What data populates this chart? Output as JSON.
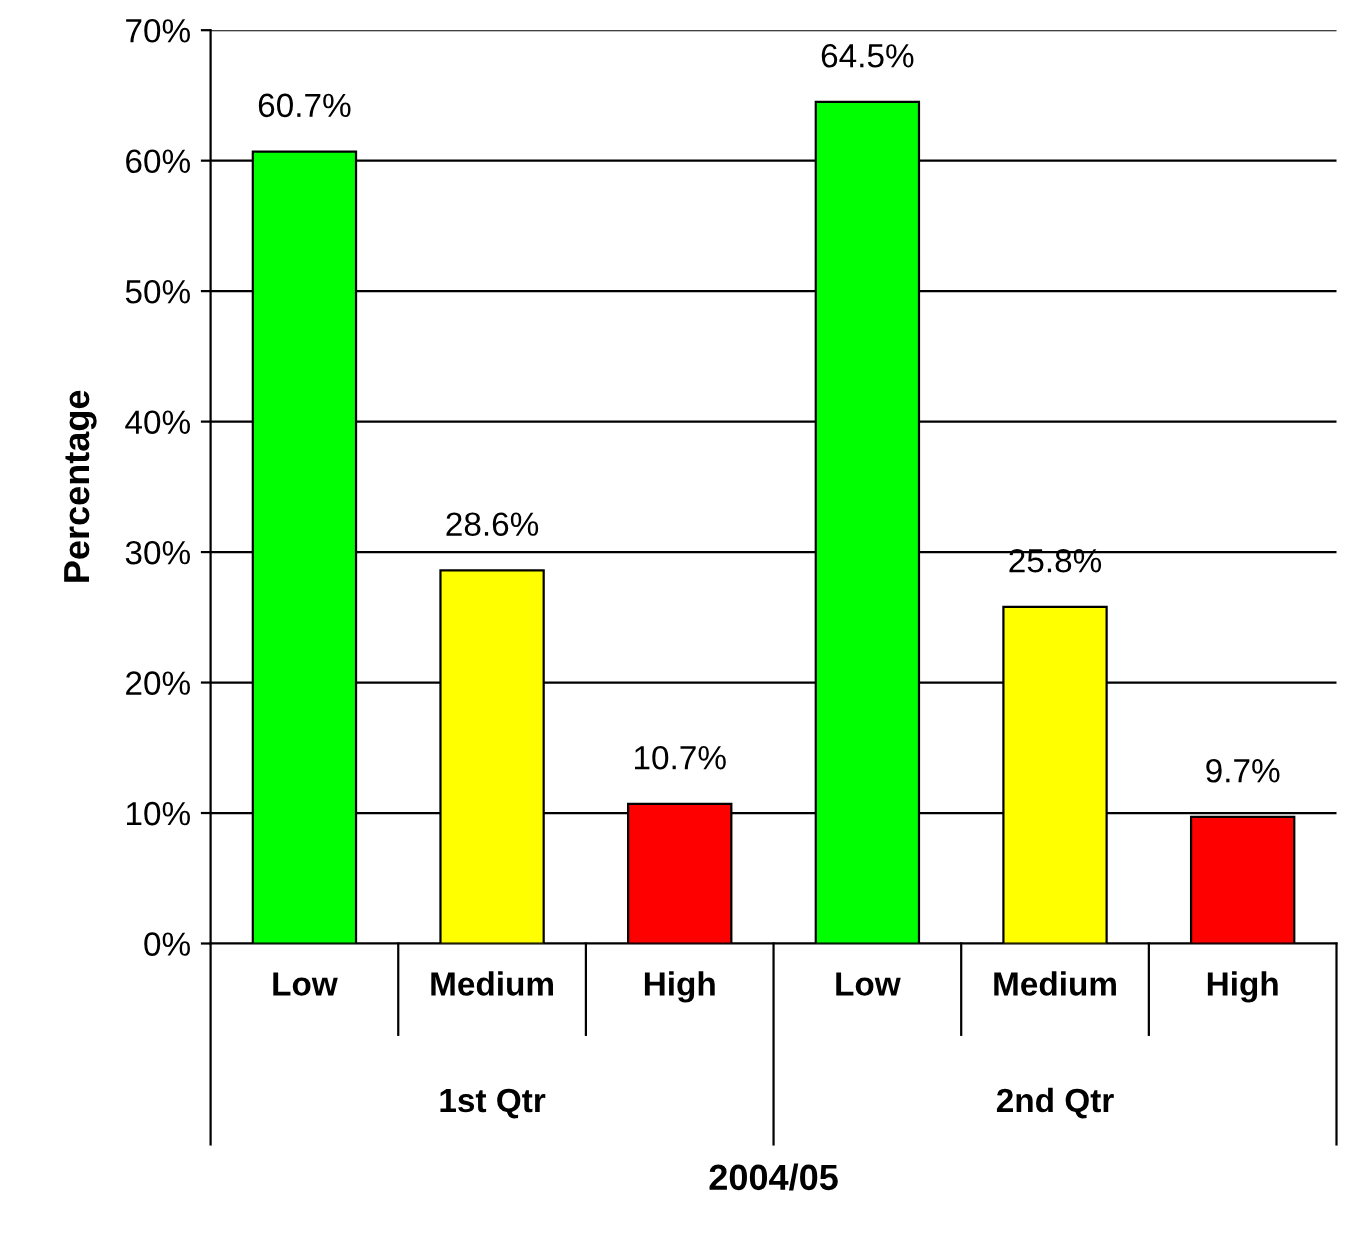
{
  "chart_data": {
    "type": "bar",
    "xlabel": "2004/05",
    "ylabel": "Percentage",
    "categories": [
      "Low",
      "Medium",
      "High",
      "Low",
      "Medium",
      "High"
    ],
    "values": [
      60.7,
      28.6,
      10.7,
      64.5,
      25.8,
      9.7
    ],
    "colors": [
      "#00ff00",
      "#ffff00",
      "#ff0000",
      "#00ff00",
      "#ffff00",
      "#ff0000"
    ],
    "value_labels": [
      "60.7%",
      "28.6%",
      "10.7%",
      "64.5%",
      "25.8%",
      "9.7%"
    ],
    "annotations": [
      "1st Qtr",
      "2nd Qtr"
    ],
    "ylim": [
      0,
      70
    ],
    "yticks": [
      {
        "value": 0,
        "label": "0%"
      },
      {
        "value": 10,
        "label": "10%"
      },
      {
        "value": 20,
        "label": "20%"
      },
      {
        "value": 30,
        "label": "30%"
      },
      {
        "value": 40,
        "label": "40%"
      },
      {
        "value": 50,
        "label": "50%"
      },
      {
        "value": 60,
        "label": "60%"
      },
      {
        "value": 70,
        "label": "70%"
      }
    ],
    "grid": "y",
    "legend": false
  }
}
